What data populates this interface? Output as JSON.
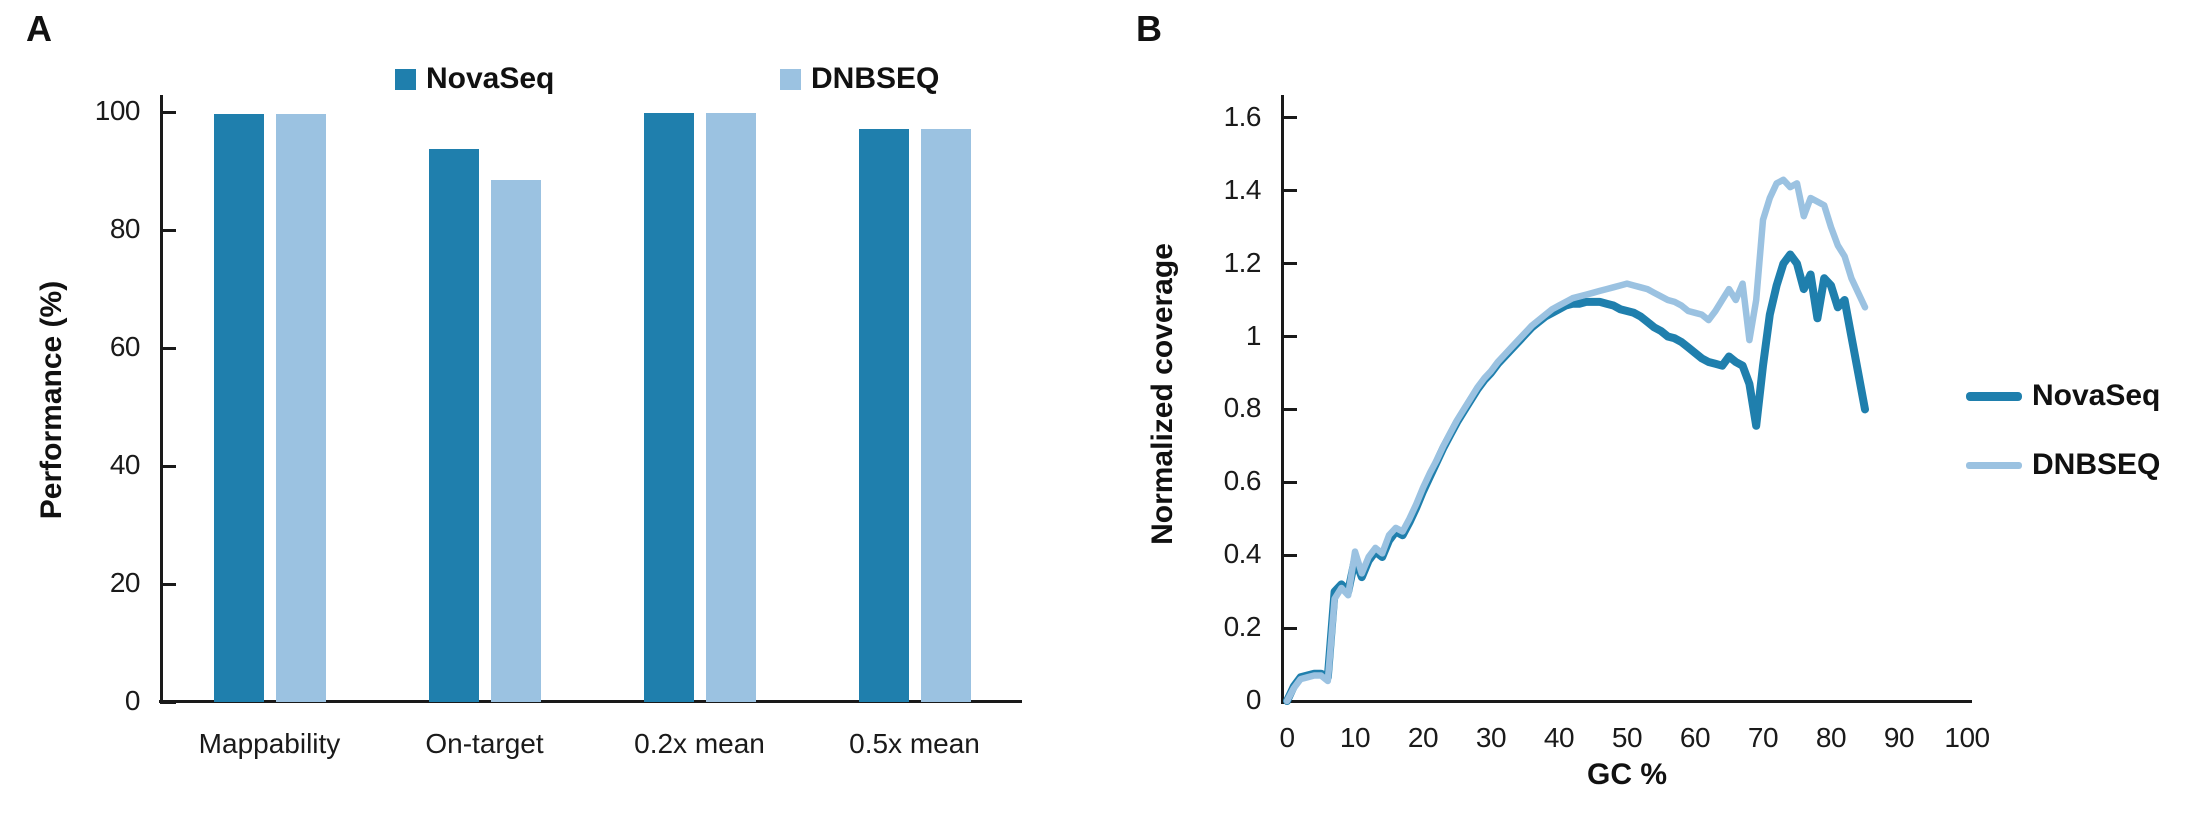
{
  "chart_data": [
    {
      "type": "bar",
      "panel_label": "A",
      "ylabel": "Performance (%)",
      "ylim": [
        0,
        100
      ],
      "yticks": [
        0,
        20,
        40,
        60,
        80,
        100
      ],
      "categories": [
        "Mappability",
        "On-target",
        "0.2x mean",
        "0.5x mean"
      ],
      "series": [
        {
          "name": "NovaSeq",
          "color": "#1F7FAD",
          "values": [
            99.7,
            93.7,
            99.8,
            97.2
          ]
        },
        {
          "name": "DNBSEQ",
          "color": "#9BC2E1",
          "values": [
            99.7,
            88.5,
            99.8,
            97.2
          ]
        }
      ],
      "legend_position": "top",
      "grid": false
    },
    {
      "type": "line",
      "panel_label": "B",
      "xlabel": "GC %",
      "ylabel": "Normalized coverage",
      "xlim": [
        0,
        100
      ],
      "ylim": [
        0,
        1.6
      ],
      "xticks": [
        0,
        10,
        20,
        30,
        40,
        50,
        60,
        70,
        80,
        90,
        100
      ],
      "yticks": [
        0,
        0.2,
        0.4,
        0.6,
        0.8,
        1.0,
        1.2,
        1.4,
        1.6
      ],
      "legend_position": "right",
      "grid": false,
      "series": [
        {
          "name": "NovaSeq",
          "color": "#1F7FAD",
          "x_start": 0,
          "x_step": 1,
          "y": [
            0,
            0.04,
            0.065,
            0.07,
            0.075,
            0.075,
            0.065,
            0.3,
            0.32,
            0.3,
            0.39,
            0.34,
            0.385,
            0.41,
            0.395,
            0.44,
            0.465,
            0.455,
            0.49,
            0.53,
            0.575,
            0.615,
            0.655,
            0.695,
            0.73,
            0.765,
            0.795,
            0.825,
            0.855,
            0.88,
            0.9,
            0.925,
            0.945,
            0.965,
            0.985,
            1.005,
            1.025,
            1.04,
            1.055,
            1.065,
            1.075,
            1.085,
            1.09,
            1.09,
            1.095,
            1.095,
            1.095,
            1.09,
            1.085,
            1.075,
            1.07,
            1.065,
            1.055,
            1.04,
            1.025,
            1.015,
            1.0,
            0.995,
            0.985,
            0.97,
            0.955,
            0.94,
            0.93,
            0.925,
            0.92,
            0.945,
            0.93,
            0.92,
            0.87,
            0.755,
            0.92,
            1.06,
            1.14,
            1.2,
            1.225,
            1.2,
            1.13,
            1.17,
            1.05,
            1.16,
            1.14,
            1.08,
            1.1,
            1.0,
            0.9,
            0.8
          ]
        },
        {
          "name": "DNBSEQ",
          "color": "#9BC2E1",
          "x_start": 0,
          "x_step": 1,
          "y": [
            0,
            0.035,
            0.06,
            0.065,
            0.07,
            0.07,
            0.055,
            0.28,
            0.31,
            0.29,
            0.41,
            0.35,
            0.395,
            0.42,
            0.405,
            0.455,
            0.475,
            0.465,
            0.5,
            0.54,
            0.585,
            0.625,
            0.66,
            0.7,
            0.735,
            0.77,
            0.8,
            0.83,
            0.86,
            0.885,
            0.905,
            0.93,
            0.95,
            0.97,
            0.99,
            1.01,
            1.03,
            1.045,
            1.06,
            1.075,
            1.085,
            1.095,
            1.105,
            1.11,
            1.115,
            1.12,
            1.125,
            1.13,
            1.135,
            1.14,
            1.145,
            1.14,
            1.135,
            1.13,
            1.12,
            1.11,
            1.1,
            1.095,
            1.085,
            1.07,
            1.065,
            1.06,
            1.045,
            1.07,
            1.1,
            1.13,
            1.1,
            1.145,
            0.99,
            1.1,
            1.32,
            1.38,
            1.42,
            1.43,
            1.41,
            1.42,
            1.33,
            1.38,
            1.37,
            1.36,
            1.3,
            1.25,
            1.22,
            1.16,
            1.12,
            1.08
          ]
        }
      ]
    }
  ]
}
